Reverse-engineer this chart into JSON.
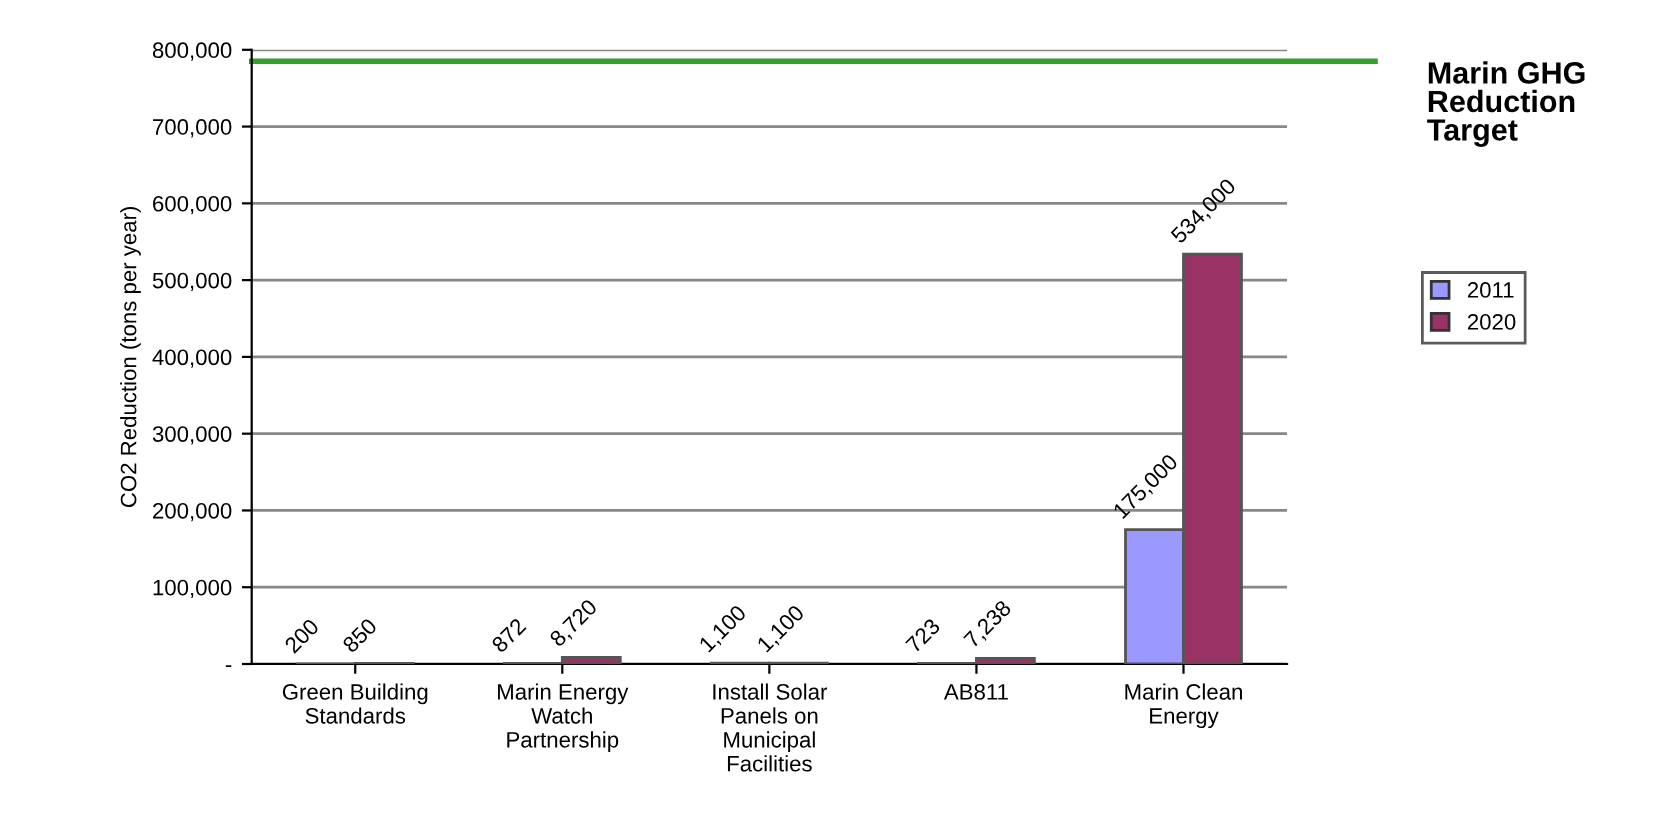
{
  "chart_data": {
    "type": "bar",
    "ylabel": "CO2 Reduction (tons per year)",
    "categories": [
      "Green Building Standards",
      "Marin Energy Watch Partnership",
      "Install Solar Panels on Municipal Facilities",
      "AB811",
      "Marin Clean Energy"
    ],
    "series": [
      {
        "name": "2011",
        "color": "#9999ff",
        "values": [
          200,
          872,
          1100,
          723,
          175000
        ],
        "value_labels": [
          "200",
          "872",
          "1,100",
          "723",
          "175,000"
        ]
      },
      {
        "name": "2020",
        "color": "#993366",
        "values": [
          850,
          8720,
          1100,
          7238,
          534000
        ],
        "value_labels": [
          "850",
          "8,720",
          "1,100",
          "7,238",
          "534,000"
        ]
      }
    ],
    "ylim": [
      0,
      800000
    ],
    "yticks": [
      {
        "value": 0,
        "label": "-"
      },
      {
        "value": 100000,
        "label": "100,000"
      },
      {
        "value": 200000,
        "label": "200,000"
      },
      {
        "value": 300000,
        "label": "300,000"
      },
      {
        "value": 400000,
        "label": "400,000"
      },
      {
        "value": 500000,
        "label": "500,000"
      },
      {
        "value": 600000,
        "label": "600,000"
      },
      {
        "value": 700000,
        "label": "700,000"
      },
      {
        "value": 800000,
        "label": "800,000"
      }
    ],
    "ref_lines": [
      {
        "axis": "y",
        "value": 785000,
        "label": "Marin GHG Reduction Target",
        "color": "#33a02c"
      }
    ],
    "grid": "y",
    "legend": "right"
  }
}
